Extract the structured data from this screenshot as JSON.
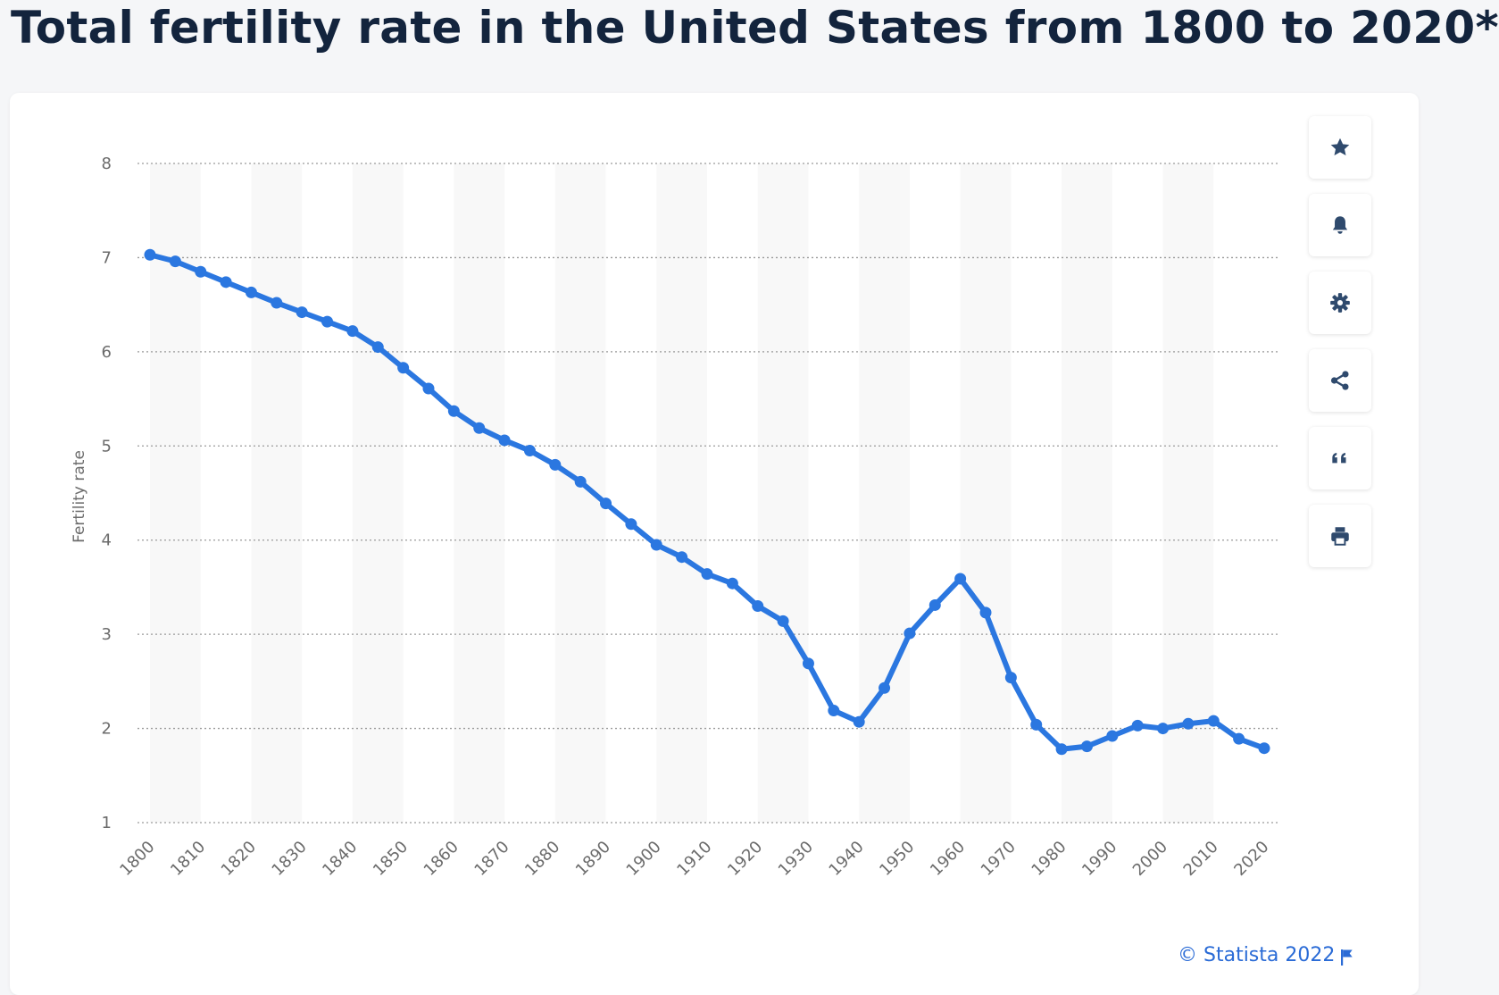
{
  "title": "Total fertility rate in the United States from 1800 to 2020*",
  "credit": "© Statista 2022",
  "colors": {
    "line": "#2b77e0",
    "title": "#13243d",
    "icon": "#2f4a6d",
    "credit": "#2a6bd6"
  },
  "toolbar": [
    {
      "name": "favorite-button",
      "icon": "star-icon"
    },
    {
      "name": "alert-button",
      "icon": "bell-icon"
    },
    {
      "name": "settings-button",
      "icon": "gear-icon"
    },
    {
      "name": "share-button",
      "icon": "share-icon"
    },
    {
      "name": "cite-button",
      "icon": "quote-icon"
    },
    {
      "name": "print-button",
      "icon": "printer-icon"
    }
  ],
  "chart_data": {
    "type": "line",
    "title": "Total fertility rate in the United States from 1800 to 2020*",
    "xlabel": "",
    "ylabel": "Fertility rate",
    "xlim": [
      1800,
      2020
    ],
    "ylim": [
      1,
      8
    ],
    "yticks": [
      1,
      2,
      3,
      4,
      5,
      6,
      7,
      8
    ],
    "xticks": [
      1800,
      1810,
      1820,
      1830,
      1840,
      1850,
      1860,
      1870,
      1880,
      1890,
      1900,
      1910,
      1920,
      1930,
      1940,
      1950,
      1960,
      1970,
      1980,
      1990,
      2000,
      2010,
      2020
    ],
    "grid": true,
    "legend": "none",
    "series": [
      {
        "x": [
          1800,
          1805,
          1810,
          1815,
          1820,
          1825,
          1830,
          1835,
          1840,
          1845,
          1850,
          1855,
          1860,
          1865,
          1870,
          1875,
          1880,
          1885,
          1890,
          1895,
          1900,
          1905,
          1910,
          1915,
          1920,
          1925,
          1930,
          1935,
          1940,
          1945,
          1950,
          1955,
          1960,
          1965,
          1970,
          1975,
          1980,
          1985,
          1990,
          1995,
          2000,
          2005,
          2010,
          2015,
          2020
        ],
        "values": [
          7.03,
          6.96,
          6.85,
          6.74,
          6.63,
          6.52,
          6.42,
          6.32,
          6.22,
          6.05,
          5.83,
          5.61,
          5.37,
          5.19,
          5.06,
          4.95,
          4.8,
          4.62,
          4.39,
          4.17,
          3.95,
          3.82,
          3.64,
          3.54,
          3.3,
          3.14,
          2.69,
          2.19,
          2.07,
          2.43,
          3.01,
          3.31,
          3.59,
          3.23,
          2.54,
          2.04,
          1.78,
          1.81,
          1.92,
          2.03,
          2.0,
          2.05,
          2.08,
          1.89,
          1.79
        ]
      }
    ]
  }
}
